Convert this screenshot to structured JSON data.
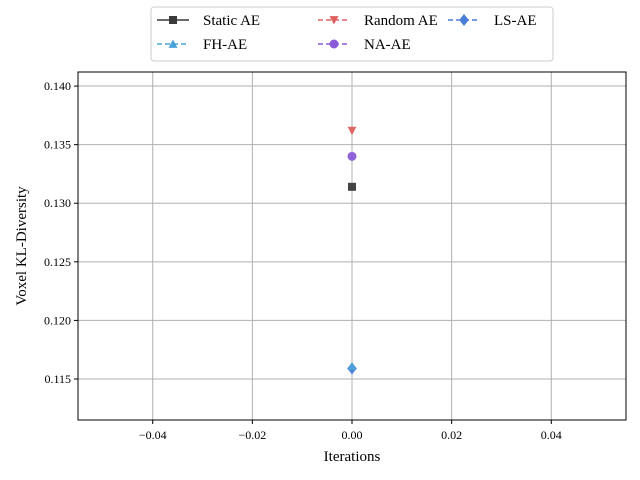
{
  "chart_data": {
    "type": "line",
    "xlabel": "Iterations",
    "ylabel": "Voxel KL-Diversity",
    "xlim": [
      -0.055,
      0.055
    ],
    "ylim": [
      0.1115,
      0.1412
    ],
    "xticks": [
      -0.04,
      -0.02,
      0.0,
      0.02,
      0.04
    ],
    "xtick_labels": [
      "−0.04",
      "−0.02",
      "0.00",
      "0.02",
      "0.04"
    ],
    "yticks": [
      0.115,
      0.12,
      0.125,
      0.13,
      0.135,
      0.14
    ],
    "ytick_labels": [
      "0.115",
      "0.120",
      "0.125",
      "0.130",
      "0.135",
      "0.140"
    ],
    "grid": true,
    "legend_position": "top-center, outside plot",
    "legend_columns": 3,
    "series": [
      {
        "name": "Static AE",
        "x": [
          0
        ],
        "y": [
          0.1314
        ],
        "color": "#3a3a3a",
        "marker": "square",
        "linestyle": "solid"
      },
      {
        "name": "Random AE",
        "x": [
          0
        ],
        "y": [
          0.1362
        ],
        "color": "#e06060",
        "marker": "triangle-down",
        "linestyle": "dashed"
      },
      {
        "name": "LS-AE",
        "x": [
          0
        ],
        "y": [
          0.1159
        ],
        "color": "#4a7fd8",
        "marker": "diamond",
        "linestyle": "dashed"
      },
      {
        "name": "FH-AE",
        "x": [
          0
        ],
        "y": [
          0.1161
        ],
        "color": "#4aa3d8",
        "marker": "triangle-up",
        "linestyle": "dashed"
      },
      {
        "name": "NA-AE",
        "x": [
          0
        ],
        "y": [
          0.134
        ],
        "color": "#8a5bd8",
        "marker": "circle",
        "linestyle": "dashed"
      }
    ]
  }
}
